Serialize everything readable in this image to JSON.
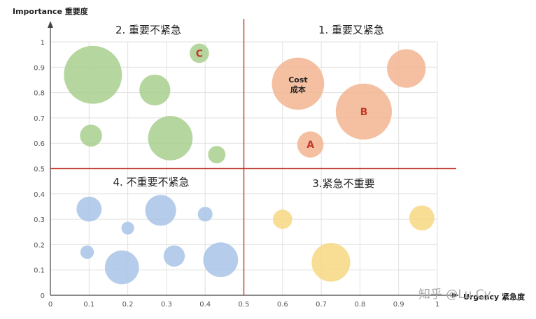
{
  "chart_data": {
    "type": "scatter",
    "ylabel": "Importance 重要度",
    "xlabel": "Urgency 紧急度",
    "xlim": [
      0,
      1
    ],
    "ylim": [
      0,
      1
    ],
    "x_ticks": [
      "0",
      "0.1",
      "0.2",
      "0.3",
      "0.4",
      "0.5",
      "0.6",
      "0.7",
      "0.8",
      "0.9",
      "1"
    ],
    "y_ticks": [
      "0",
      "0.1",
      "0.2",
      "0.3",
      "0.4",
      "0.5",
      "0.6",
      "0.7",
      "0.8",
      "0.9",
      "1"
    ],
    "grid": true,
    "divider_x": 0.5,
    "divider_y": 0.5,
    "quadrants": [
      {
        "id": "q1",
        "label": "1. 重要又紧急"
      },
      {
        "id": "q2",
        "label": "2. 重要不紧急"
      },
      {
        "id": "q3",
        "label": "3.紧急不重要"
      },
      {
        "id": "q4",
        "label": "4. 不重要不紧急"
      }
    ],
    "colors": {
      "q1": "#f2b591",
      "q2": "#a9cf8e",
      "q3": "#f7d882",
      "q4": "#a8c4e6",
      "divider": "#c0392b",
      "grid": "#e2e2e2",
      "axis": "#444444"
    },
    "series": [
      {
        "quadrant": "q2",
        "points": [
          {
            "x": 0.11,
            "y": 0.87,
            "size": 0.15,
            "label": ""
          },
          {
            "x": 0.27,
            "y": 0.81,
            "size": 0.08,
            "label": ""
          },
          {
            "x": 0.385,
            "y": 0.955,
            "size": 0.05,
            "label": "C"
          },
          {
            "x": 0.105,
            "y": 0.63,
            "size": 0.057,
            "label": ""
          },
          {
            "x": 0.31,
            "y": 0.62,
            "size": 0.115,
            "label": ""
          },
          {
            "x": 0.43,
            "y": 0.555,
            "size": 0.045,
            "label": ""
          }
        ]
      },
      {
        "quadrant": "q1",
        "points": [
          {
            "x": 0.64,
            "y": 0.835,
            "size": 0.135,
            "label": "Cost\n成本"
          },
          {
            "x": 0.92,
            "y": 0.895,
            "size": 0.1,
            "label": ""
          },
          {
            "x": 0.81,
            "y": 0.725,
            "size": 0.145,
            "label": "B"
          },
          {
            "x": 0.672,
            "y": 0.595,
            "size": 0.068,
            "label": "A"
          }
        ]
      },
      {
        "quadrant": "q4",
        "points": [
          {
            "x": 0.1,
            "y": 0.34,
            "size": 0.065,
            "label": ""
          },
          {
            "x": 0.285,
            "y": 0.335,
            "size": 0.08,
            "label": ""
          },
          {
            "x": 0.4,
            "y": 0.32,
            "size": 0.038,
            "label": ""
          },
          {
            "x": 0.2,
            "y": 0.265,
            "size": 0.033,
            "label": ""
          },
          {
            "x": 0.095,
            "y": 0.17,
            "size": 0.035,
            "label": ""
          },
          {
            "x": 0.185,
            "y": 0.11,
            "size": 0.088,
            "label": ""
          },
          {
            "x": 0.32,
            "y": 0.155,
            "size": 0.055,
            "label": ""
          },
          {
            "x": 0.44,
            "y": 0.14,
            "size": 0.09,
            "label": ""
          }
        ]
      },
      {
        "quadrant": "q3",
        "points": [
          {
            "x": 0.6,
            "y": 0.3,
            "size": 0.05,
            "label": ""
          },
          {
            "x": 0.96,
            "y": 0.305,
            "size": 0.065,
            "label": ""
          },
          {
            "x": 0.725,
            "y": 0.13,
            "size": 0.1,
            "label": ""
          }
        ]
      }
    ]
  },
  "watermark": "知乎 @Lu Cy"
}
